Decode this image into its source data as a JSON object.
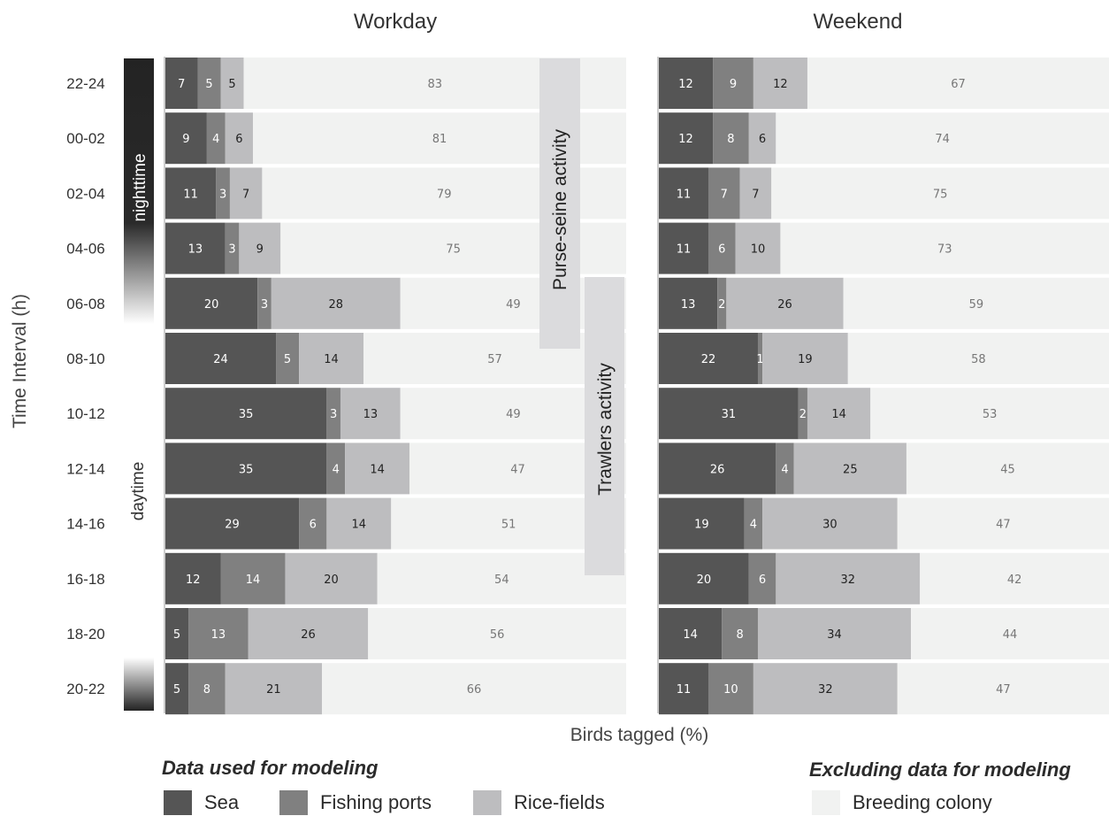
{
  "chart_data": {
    "type": "bar",
    "stacked": true,
    "orientation": "horizontal",
    "xlabel": "Birds tagged (%)",
    "ylabel": "Time Interval (h)",
    "categories": [
      "22-24",
      "00-02",
      "02-04",
      "04-06",
      "06-08",
      "08-10",
      "10-12",
      "12-14",
      "14-16",
      "16-18",
      "18-20",
      "20-22"
    ],
    "panels": [
      {
        "title": "Workday",
        "series": [
          {
            "name": "Sea",
            "values": [
              7,
              9,
              11,
              13,
              20,
              24,
              35,
              35,
              29,
              12,
              5,
              5
            ]
          },
          {
            "name": "Fishing ports",
            "values": [
              5,
              4,
              3,
              3,
              3,
              5,
              3,
              4,
              6,
              14,
              13,
              8
            ]
          },
          {
            "name": "Rice-fields",
            "values": [
              5,
              6,
              7,
              9,
              28,
              14,
              13,
              14,
              14,
              20,
              26,
              21
            ]
          },
          {
            "name": "Breeding colony",
            "values": [
              83,
              81,
              79,
              75,
              49,
              57,
              49,
              47,
              51,
              54,
              56,
              66
            ]
          }
        ]
      },
      {
        "title": "Weekend",
        "series": [
          {
            "name": "Sea",
            "values": [
              12,
              12,
              11,
              11,
              13,
              22,
              31,
              26,
              19,
              20,
              14,
              11
            ]
          },
          {
            "name": "Fishing ports",
            "values": [
              9,
              8,
              7,
              6,
              2,
              1,
              2,
              4,
              4,
              6,
              8,
              10
            ]
          },
          {
            "name": "Rice-fields",
            "values": [
              12,
              6,
              7,
              10,
              26,
              19,
              14,
              25,
              30,
              32,
              34,
              32
            ]
          },
          {
            "name": "Breeding colony",
            "values": [
              67,
              74,
              75,
              73,
              59,
              58,
              53,
              45,
              47,
              42,
              44,
              47
            ]
          }
        ]
      }
    ],
    "annotations": {
      "purse_seine": "Purse-seine activity",
      "trawlers": "Trawlers activity",
      "nighttime": "nighttime",
      "daytime": "daytime"
    },
    "colors": {
      "Sea": "#555555",
      "Fishing ports": "#808080",
      "Rice-fields": "#bdbdbf",
      "Breeding colony": "#f1f2f1",
      "activity_band": "#dbdbdd"
    }
  },
  "legend": {
    "used_heading": "Data used for modeling",
    "excluded_heading": "Excluding data for modeling",
    "items": [
      "Sea",
      "Fishing ports",
      "Rice-fields",
      "Breeding colony"
    ]
  }
}
